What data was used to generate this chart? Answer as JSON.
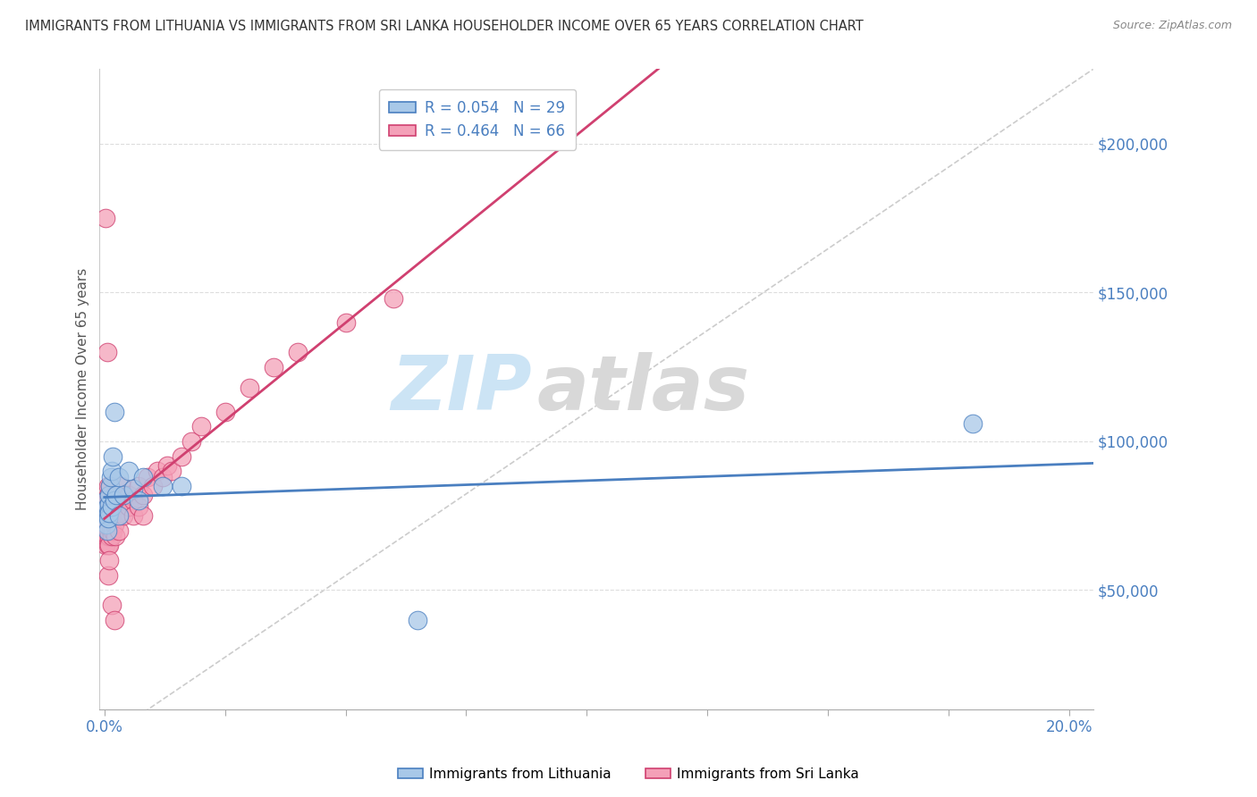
{
  "title": "IMMIGRANTS FROM LITHUANIA VS IMMIGRANTS FROM SRI LANKA HOUSEHOLDER INCOME OVER 65 YEARS CORRELATION CHART",
  "source": "Source: ZipAtlas.com",
  "ylabel": "Householder Income Over 65 years",
  "xlim": [
    -0.001,
    0.205
  ],
  "ylim": [
    10000,
    225000
  ],
  "legend_blue_label": "Immigrants from Lithuania",
  "legend_pink_label": "Immigrants from Sri Lanka",
  "R_blue": 0.054,
  "N_blue": 29,
  "R_pink": 0.464,
  "N_pink": 66,
  "color_blue": "#a8c8e8",
  "color_pink": "#f4a0b8",
  "color_blue_line": "#4a7fc0",
  "color_pink_line": "#d04070",
  "color_right_axis": "#4a7fc0",
  "watermark_color": "#cce4f5",
  "ylabel_vals": [
    50000,
    100000,
    150000,
    200000
  ],
  "ylabel_ticks": [
    "$50,000",
    "$100,000",
    "$150,000",
    "$200,000"
  ],
  "xtick_minor_positions": [
    0.025,
    0.05,
    0.075,
    0.1,
    0.125,
    0.15,
    0.175
  ],
  "blue_x": [
    0.0002,
    0.0003,
    0.0004,
    0.0005,
    0.0006,
    0.0007,
    0.0008,
    0.0009,
    0.001,
    0.001,
    0.0012,
    0.0013,
    0.0015,
    0.0015,
    0.0017,
    0.002,
    0.002,
    0.0025,
    0.003,
    0.003,
    0.004,
    0.005,
    0.006,
    0.007,
    0.008,
    0.012,
    0.016,
    0.18,
    0.065
  ],
  "blue_y": [
    80000,
    75000,
    72000,
    78000,
    70000,
    76000,
    74000,
    79000,
    82000,
    76000,
    85000,
    88000,
    90000,
    78000,
    95000,
    110000,
    80000,
    82000,
    88000,
    75000,
    82000,
    90000,
    84000,
    80000,
    88000,
    85000,
    85000,
    106000,
    40000
  ],
  "pink_x": [
    0.0001,
    0.0002,
    0.0002,
    0.0003,
    0.0003,
    0.0004,
    0.0004,
    0.0005,
    0.0005,
    0.0006,
    0.0006,
    0.0007,
    0.0007,
    0.0008,
    0.0008,
    0.0009,
    0.001,
    0.001,
    0.001,
    0.0012,
    0.0012,
    0.0013,
    0.0014,
    0.0015,
    0.0015,
    0.0016,
    0.0017,
    0.0018,
    0.002,
    0.002,
    0.0022,
    0.0025,
    0.003,
    0.003,
    0.0035,
    0.004,
    0.004,
    0.005,
    0.005,
    0.006,
    0.006,
    0.007,
    0.007,
    0.008,
    0.008,
    0.009,
    0.01,
    0.011,
    0.012,
    0.013,
    0.014,
    0.016,
    0.018,
    0.02,
    0.025,
    0.03,
    0.035,
    0.04,
    0.05,
    0.06,
    0.0003,
    0.0005,
    0.0008,
    0.001,
    0.0015,
    0.002
  ],
  "pink_y": [
    72000,
    68000,
    78000,
    65000,
    80000,
    70000,
    75000,
    68000,
    80000,
    72000,
    78000,
    65000,
    82000,
    70000,
    85000,
    68000,
    75000,
    80000,
    65000,
    78000,
    85000,
    70000,
    75000,
    80000,
    68000,
    75000,
    70000,
    78000,
    72000,
    82000,
    68000,
    75000,
    80000,
    70000,
    85000,
    75000,
    80000,
    78000,
    82000,
    80000,
    75000,
    85000,
    78000,
    82000,
    75000,
    88000,
    85000,
    90000,
    88000,
    92000,
    90000,
    95000,
    100000,
    105000,
    110000,
    118000,
    125000,
    130000,
    140000,
    148000,
    175000,
    130000,
    55000,
    60000,
    45000,
    40000
  ]
}
